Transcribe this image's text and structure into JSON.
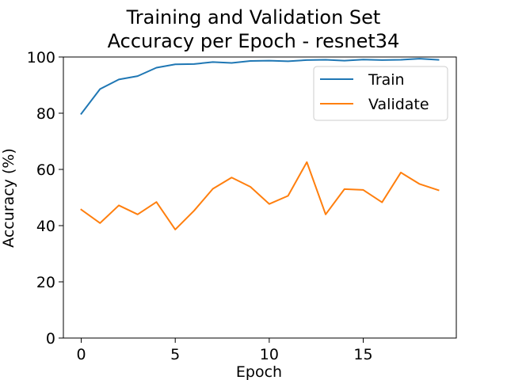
{
  "chart_data": {
    "type": "line",
    "title": [
      "Training and Validation Set",
      "Accuracy per Epoch - resnet34"
    ],
    "xlabel": "Epoch",
    "ylabel": "Accuracy (%)",
    "x": [
      0,
      1,
      2,
      3,
      4,
      5,
      6,
      7,
      8,
      9,
      10,
      11,
      12,
      13,
      14,
      15,
      16,
      17,
      18,
      19
    ],
    "xlim": [
      -0.95,
      19.95
    ],
    "ylim": [
      0,
      100
    ],
    "xticks": [
      0,
      5,
      10,
      15
    ],
    "yticks": [
      0,
      20,
      40,
      60,
      80,
      100
    ],
    "grid": false,
    "legend_position": "top-right",
    "series": [
      {
        "name": "Train",
        "color": "#1f77b4",
        "values": [
          79.8,
          88.6,
          92.0,
          93.2,
          96.2,
          97.4,
          97.5,
          98.2,
          97.9,
          98.6,
          98.7,
          98.5,
          98.9,
          99.0,
          98.7,
          99.1,
          98.9,
          99.0,
          99.4,
          99.0
        ]
      },
      {
        "name": "Validate",
        "color": "#ff7f0e",
        "values": [
          45.7,
          40.9,
          47.2,
          44.0,
          48.4,
          38.6,
          45.3,
          53.1,
          57.1,
          53.8,
          47.7,
          50.6,
          62.6,
          44.0,
          53.0,
          52.7,
          48.3,
          58.9,
          54.8,
          52.6
        ]
      }
    ]
  }
}
